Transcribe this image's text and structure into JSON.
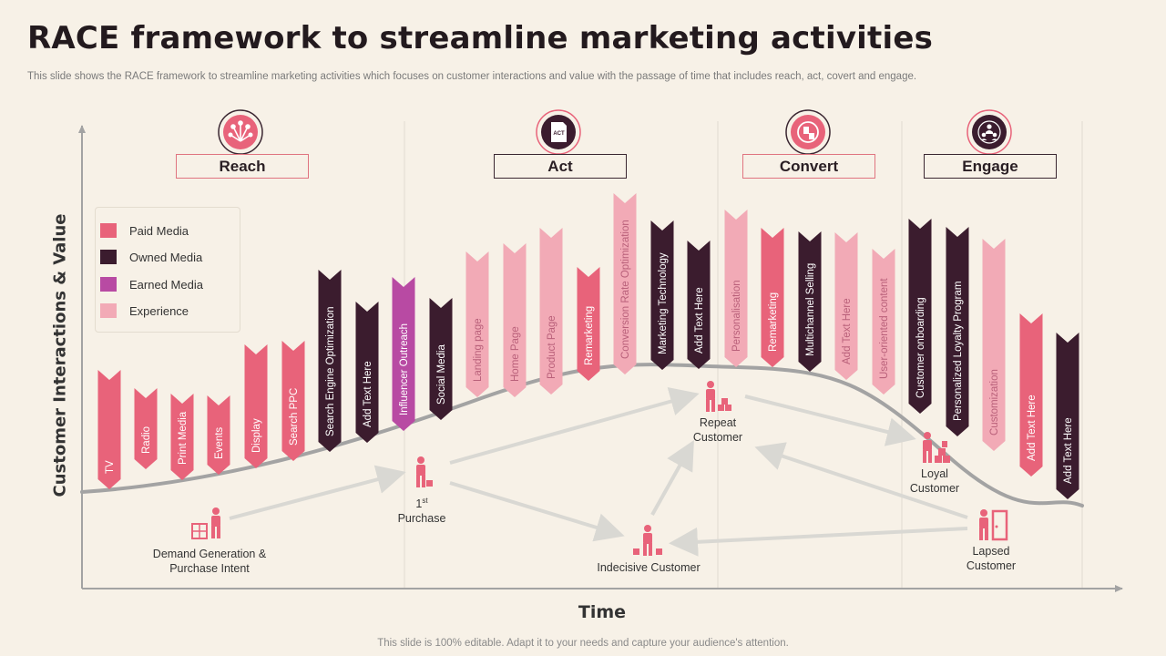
{
  "title": "RACE framework to streamline marketing activities",
  "subtitle": "This slide shows the RACE framework to streamline marketing activities which focuses on customer interactions and value with the passage of time that includes reach, act, covert and engage.",
  "footer": "This slide is 100% editable. Adapt it to your needs and capture your audience's attention.",
  "axes": {
    "y_label": "Customer Interactions & Value",
    "x_label": "Time"
  },
  "colors": {
    "paid": "#e8637a",
    "owned": "#3b1c2e",
    "earned": "#b84aa3",
    "experience": "#f2aab6",
    "curve": "#a3a3a3",
    "arrow": "#d9d8d3",
    "person": "#e8637a"
  },
  "legend": [
    {
      "label": "Paid Media",
      "key": "paid"
    },
    {
      "label": "Owned Media",
      "key": "owned"
    },
    {
      "label": "Earned Media",
      "key": "earned"
    },
    {
      "label": "Experience",
      "key": "experience"
    }
  ],
  "phases": [
    {
      "label": "Reach",
      "style": "light",
      "icon": "network-icon"
    },
    {
      "label": "Act",
      "style": "dark",
      "icon": "act-document-icon"
    },
    {
      "label": "Convert",
      "style": "light",
      "icon": "conversion-icon"
    },
    {
      "label": "Engage",
      "style": "dark",
      "icon": "team-icon"
    }
  ],
  "act_icon_text": "ACT",
  "banners": [
    {
      "label": "TV",
      "key": "paid"
    },
    {
      "label": "Radio",
      "key": "paid"
    },
    {
      "label": "Print Media",
      "key": "paid"
    },
    {
      "label": "Events",
      "key": "paid"
    },
    {
      "label": "Display",
      "key": "paid"
    },
    {
      "label": "Search PPC",
      "key": "paid"
    },
    {
      "label": "Search Engine Optimization",
      "key": "owned"
    },
    {
      "label": "Add Text Here",
      "key": "owned"
    },
    {
      "label": "Influencer Outreach",
      "key": "earned"
    },
    {
      "label": "Social Media",
      "key": "owned"
    },
    {
      "label": "Landing page",
      "key": "experience"
    },
    {
      "label": "Home Page",
      "key": "experience"
    },
    {
      "label": "Product Page",
      "key": "experience"
    },
    {
      "label": "Remarketing",
      "key": "paid"
    },
    {
      "label": "Conversion Rate Optimization",
      "key": "experience"
    },
    {
      "label": "Marketing Technology",
      "key": "owned"
    },
    {
      "label": "Add Text Here",
      "key": "owned"
    },
    {
      "label": "Personalisation",
      "key": "experience"
    },
    {
      "label": "Remarketing",
      "key": "paid"
    },
    {
      "label": "Multichannel Selling",
      "key": "owned"
    },
    {
      "label": "Add Text Here",
      "key": "experience"
    },
    {
      "label": "User-oriented content",
      "key": "experience"
    },
    {
      "label": "Customer onboarding",
      "key": "owned"
    },
    {
      "label": "Personalized Loyalty Program",
      "key": "owned"
    },
    {
      "label": "Customization",
      "key": "experience"
    },
    {
      "label": "Add Text Here",
      "key": "paid"
    },
    {
      "label": "Add Text Here",
      "key": "owned"
    }
  ],
  "stages": {
    "demand": {
      "line1": "Demand Generation &",
      "line2": "Purchase Intent"
    },
    "first_purchase": {
      "ordinal": "1",
      "superscript": "st",
      "line2": "Purchase"
    },
    "indecisive": {
      "line1": "Indecisive Customer"
    },
    "repeat": {
      "line1": "Repeat",
      "line2": "Customer"
    },
    "loyal": {
      "line1": "Loyal",
      "line2": "Customer"
    },
    "lapsed": {
      "line1": "Lapsed",
      "line2": "Customer"
    }
  }
}
